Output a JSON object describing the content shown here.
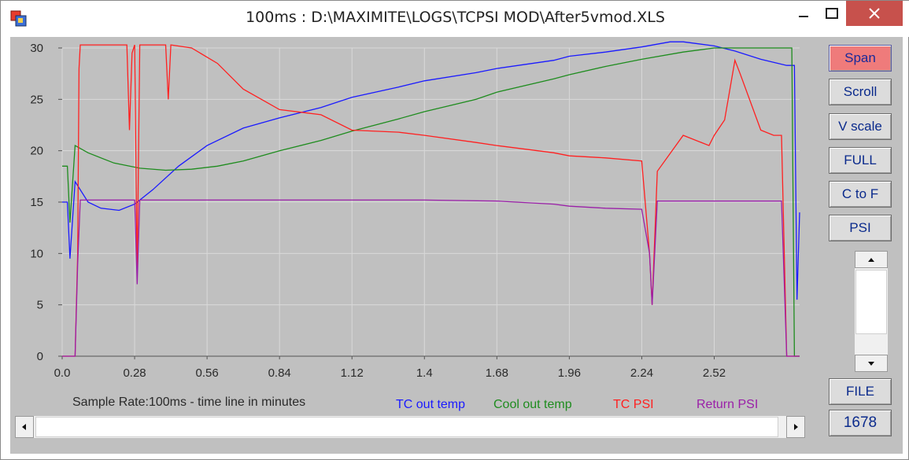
{
  "window": {
    "title": "100ms : D:\\MAXIMITE\\LOGS\\TCPSI MOD\\After5vmod.XLS",
    "controls": [
      "minimize",
      "maximize",
      "close"
    ]
  },
  "buttons": {
    "span": "Span",
    "scroll": "Scroll",
    "vscale": "V scale",
    "full": "FULL",
    "c_to_f": "C to F",
    "psi": "PSI",
    "file": "FILE"
  },
  "sample_count": "1678",
  "caption": "Sample Rate:100ms  - time line in minutes",
  "colors": {
    "plot_bg": "#c0c0c0",
    "grid": "#d9d9d9",
    "tc_out_temp": "#1a1aff",
    "cool_out_temp": "#1e8c1e",
    "tc_psi": "#ff2020",
    "return_psi": "#9a1fa8",
    "active_button": "#ef7b7b"
  },
  "icons": {
    "app": "app-icon",
    "scroll_up": "arrow-up-icon",
    "scroll_down": "arrow-down-icon",
    "scroll_left": "arrow-left-icon",
    "scroll_right": "arrow-right-icon"
  },
  "chart_data": {
    "type": "line",
    "xlabel": "",
    "ylabel": "",
    "xlim": [
      0,
      2.85
    ],
    "ylim": [
      0,
      30
    ],
    "grid": true,
    "x_ticks": [
      "0.0",
      "0.28",
      "0.56",
      "0.84",
      "1.12",
      "1.4",
      "1.68",
      "1.96",
      "2.24",
      "2.52"
    ],
    "y_ticks": [
      "0",
      "5",
      "10",
      "15",
      "20",
      "25",
      "30"
    ],
    "series": [
      {
        "name": "TC out temp",
        "color": "#1a1aff",
        "x": [
          0,
          0.02,
          0.03,
          0.05,
          0.1,
          0.15,
          0.22,
          0.28,
          0.35,
          0.45,
          0.56,
          0.7,
          0.84,
          1.0,
          1.12,
          1.3,
          1.4,
          1.6,
          1.68,
          1.9,
          1.96,
          2.1,
          2.24,
          2.35,
          2.4,
          2.52,
          2.6,
          2.7,
          2.8,
          2.83,
          2.84,
          2.85
        ],
        "y": [
          15,
          15,
          9.5,
          17,
          15,
          14.4,
          14.2,
          14.8,
          16.2,
          18.5,
          20.5,
          22.2,
          23.2,
          24.2,
          25.2,
          26.2,
          26.8,
          27.6,
          28,
          28.8,
          29.2,
          29.6,
          30.1,
          30.6,
          30.6,
          30.2,
          29.7,
          28.9,
          28.3,
          28.3,
          5.5,
          14
        ]
      },
      {
        "name": "Cool out temp",
        "color": "#1e8c1e",
        "x": [
          0,
          0.02,
          0.03,
          0.05,
          0.1,
          0.2,
          0.3,
          0.4,
          0.5,
          0.6,
          0.7,
          0.84,
          1.0,
          1.12,
          1.3,
          1.4,
          1.6,
          1.68,
          1.9,
          1.96,
          2.1,
          2.24,
          2.4,
          2.52,
          2.6,
          2.7,
          2.8,
          2.82,
          2.83,
          2.85
        ],
        "y": [
          18.5,
          18.5,
          13,
          20.5,
          19.8,
          18.8,
          18.3,
          18.1,
          18.2,
          18.5,
          19,
          20,
          21,
          21.9,
          23.1,
          23.8,
          25,
          25.7,
          27,
          27.4,
          28.2,
          28.9,
          29.6,
          30,
          30,
          30,
          30,
          30,
          0,
          0
        ]
      },
      {
        "name": "TC PSI",
        "color": "#ff2020",
        "x": [
          0,
          0.05,
          0.06,
          0.065,
          0.07,
          0.08,
          0.1,
          0.25,
          0.26,
          0.27,
          0.28,
          0.29,
          0.3,
          0.35,
          0.4,
          0.41,
          0.42,
          0.5,
          0.6,
          0.7,
          0.84,
          1.0,
          1.12,
          1.3,
          1.4,
          1.6,
          1.68,
          1.9,
          1.96,
          2.1,
          2.24,
          2.27,
          2.28,
          2.3,
          2.4,
          2.5,
          2.52,
          2.56,
          2.6,
          2.62,
          2.7,
          2.75,
          2.78,
          2.8,
          2.85
        ],
        "y": [
          0,
          0,
          10,
          28,
          30.3,
          30.3,
          30.3,
          30.3,
          22,
          29.5,
          30.3,
          8,
          30.3,
          30.3,
          30.3,
          25,
          30.3,
          30,
          28.5,
          26,
          24,
          23.5,
          22,
          21.8,
          21.5,
          20.8,
          20.5,
          19.8,
          19.5,
          19.3,
          19,
          10,
          5,
          18,
          21.5,
          20.5,
          21.5,
          23,
          28.8,
          27.5,
          22,
          21.5,
          21.5,
          0,
          0
        ]
      },
      {
        "name": "Return PSI",
        "color": "#9a1fa8",
        "x": [
          0,
          0.05,
          0.06,
          0.07,
          0.1,
          0.25,
          0.28,
          0.29,
          0.3,
          0.56,
          0.84,
          1.12,
          1.4,
          1.68,
          1.9,
          1.96,
          2.1,
          2.24,
          2.27,
          2.28,
          2.3,
          2.52,
          2.78,
          2.8,
          2.85
        ],
        "y": [
          0,
          0,
          9,
          15.2,
          15.2,
          15.2,
          15.2,
          7,
          15.2,
          15.2,
          15.2,
          15.2,
          15.2,
          15.1,
          14.8,
          14.6,
          14.4,
          14.3,
          10,
          5,
          15.1,
          15.1,
          15.1,
          0,
          0
        ]
      }
    ]
  }
}
